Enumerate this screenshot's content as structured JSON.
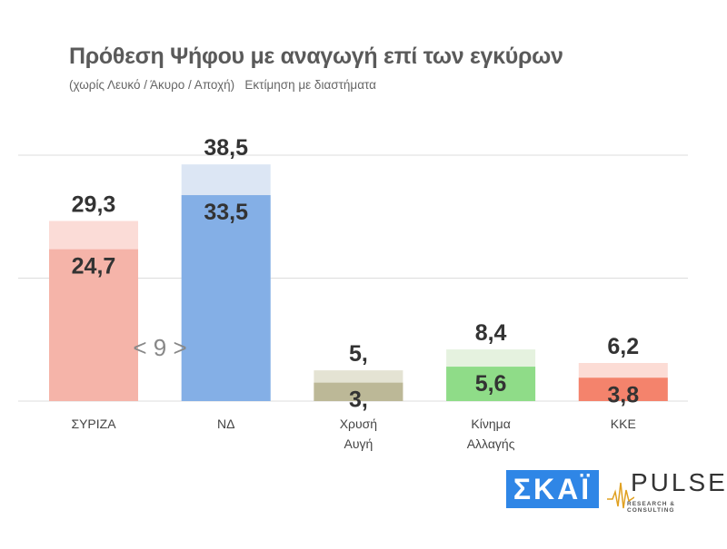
{
  "chart_data": {
    "type": "bar",
    "title": "Πρόθεση Ψήφου με αναγωγή επί των εγκύρων",
    "subtitle": "(χωρίς Λευκό / Άκυρο / Αποχή)   Εκτίμηση με διαστήματα",
    "categories": [
      "ΣΥΡΙΖΑ",
      "ΝΔ",
      "Χρυσή\nΑυγή",
      "Κίνημα\nΑλλαγής",
      "ΚΚΕ"
    ],
    "series": [
      {
        "name": "low",
        "values": [
          24.7,
          33.5,
          3,
          5.6,
          3.8
        ],
        "labels": [
          "24,7",
          "33,5",
          "3,",
          "5,6",
          "3,8"
        ]
      },
      {
        "name": "high",
        "values": [
          29.3,
          38.5,
          5,
          8.4,
          6.2
        ],
        "labels": [
          "29,3",
          "38,5",
          "5,",
          "8,4",
          "6,2"
        ]
      }
    ],
    "colors_low": [
      "#f5b4a9",
      "#84afe6",
      "#bcb897",
      "#8fdc88",
      "#f4836c"
    ],
    "colors_high": [
      "#fbdcd7",
      "#dce6f4",
      "#e4e3d3",
      "#e5f2df",
      "#fcdcd5"
    ],
    "annotation": "< 9 >",
    "ylim": [
      0,
      40
    ],
    "gridlines": [
      0,
      20,
      40
    ],
    "grid": true,
    "xlabel": "",
    "ylabel": ""
  },
  "logos": {
    "skai": "ΣΚΑΪ",
    "pulse": "PULSE",
    "pulse_sub": "RESEARCH & CONSULTING"
  }
}
